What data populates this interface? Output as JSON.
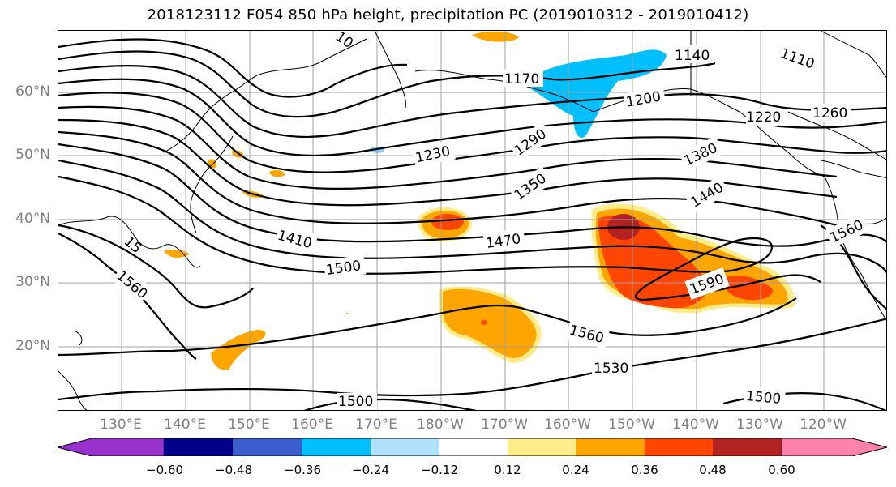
{
  "title": "2018123112 F054 850 hPa height, precipitation PC (2019010312 - 2019010412)",
  "lat_labels": [
    "60°N",
    "50°N",
    "40°N",
    "30°N",
    "20°N"
  ],
  "lon_labels": [
    "130°E",
    "140°E",
    "150°E",
    "160°E",
    "170°E",
    "180°W",
    "170°W",
    "160°W",
    "150°W",
    "140°W",
    "130°W",
    "120°W"
  ],
  "contour_labels": [
    "1140",
    "1110",
    "1170",
    "1200",
    "1220",
    "1260",
    "1230",
    "1290",
    "1350",
    "1380",
    "1440",
    "1410",
    "1470",
    "1500",
    "1560",
    "1590",
    "1560",
    "1530",
    "1500",
    "1500",
    "1560",
    "1560",
    "15",
    "10"
  ],
  "colorbar": {
    "labels": [
      "−0.60",
      "−0.48",
      "−0.36",
      "−0.24",
      "−0.12",
      "0.12",
      "0.24",
      "0.36",
      "0.48",
      "0.60"
    ],
    "colors": [
      "#9932cc",
      "#00008b",
      "#3a5fcd",
      "#00bfff",
      "#b0e2ff",
      "#ffffff",
      "#ffec8b",
      "#ffa500",
      "#ff4500",
      "#b22222",
      "#ff82ab"
    ]
  },
  "colors": {
    "positive_low": "#ffec8b",
    "positive_mid": "#ffa500",
    "positive_high": "#ff4500",
    "positive_max": "#b22222",
    "negative": "#00bfff",
    "contour": "#000000",
    "grid": "#a0a0a0"
  }
}
